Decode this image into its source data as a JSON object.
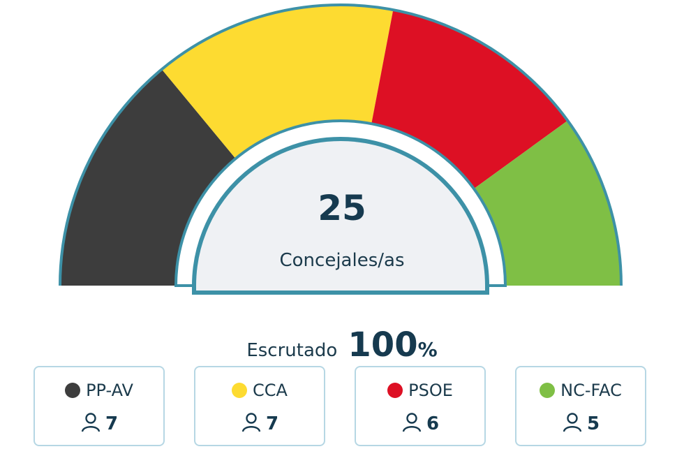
{
  "chart_data": {
    "type": "pie",
    "total_seats": "25",
    "total_label": "Concejales/as",
    "categories": [
      "PP-AV",
      "CCA",
      "PSOE",
      "NC-FAC"
    ],
    "values": [
      7,
      7,
      6,
      5
    ],
    "colors": [
      "#3d3d3d",
      "#fddb31",
      "#dd1024",
      "#7fbf45"
    ]
  },
  "scrutiny": {
    "label": "Escrutado",
    "value": "100",
    "unit": "%"
  },
  "parties": [
    {
      "name": "PP-AV",
      "seats": "7",
      "color": "#3d3d3d",
      "icon": "person-icon"
    },
    {
      "name": "CCA",
      "seats": "7",
      "color": "#fddb31",
      "icon": "person-icon"
    },
    {
      "name": "PSOE",
      "seats": "6",
      "color": "#dd1024",
      "icon": "person-icon"
    },
    {
      "name": "NC-FAC",
      "seats": "5",
      "color": "#7fbf45",
      "icon": "person-icon"
    }
  ],
  "colors": {
    "outline": "#3d91a7",
    "center_fill": "#eff1f4",
    "card_border": "#b6d7e4",
    "text": "#163a4f"
  }
}
